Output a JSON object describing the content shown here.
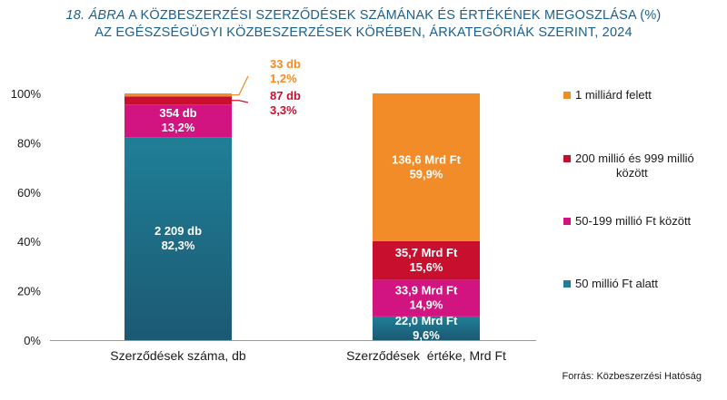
{
  "title": {
    "number": "18. ÁBRA",
    "line1_rest": "A KÖZBESZERZÉSI SZERZŐDÉSEK SZÁMÁNAK ÉS ÉRTÉKÉNEK MEGOSZLÁSA (%)",
    "line2": "AZ EGÉSZSÉGÜGYI KÖZBESZERZÉSEK KÖRÉBEN, ÁRKATEGÓRIÁK SZERINT, 2024"
  },
  "source": "Forrás: Közbeszerzési Hatóság",
  "chart_data": {
    "type": "bar",
    "stacked": true,
    "percent": true,
    "categories": [
      "Szerződések száma, db",
      "Szerződések  értéke, Mrd Ft"
    ],
    "ylim": [
      0,
      100
    ],
    "yticks": [
      "0%",
      "20%",
      "40%",
      "60%",
      "80%",
      "100%"
    ],
    "series": [
      {
        "name": "50 millió Ft alatt",
        "color": "#1f7f97",
        "values": [
          82.3,
          9.6
        ],
        "labels": [
          [
            "2 209 db",
            "82,3%"
          ],
          [
            "22,0 Mrd Ft",
            "9,6%"
          ]
        ]
      },
      {
        "name": "50-199 millió Ft között",
        "color": "#d1147f",
        "values": [
          13.2,
          14.9
        ],
        "labels": [
          [
            "354 db",
            "13,2%"
          ],
          [
            "33,9 Mrd Ft",
            "14,9%"
          ]
        ]
      },
      {
        "name": "200 millió és 999 millió között",
        "color": "#c8102e",
        "values": [
          3.3,
          15.6
        ],
        "labels": [
          [
            "87 db",
            "3,3%"
          ],
          [
            "35,7 Mrd Ft",
            "15,6%"
          ]
        ]
      },
      {
        "name": "1 milliárd felett",
        "color": "#f28c28",
        "values": [
          1.2,
          59.9
        ],
        "labels": [
          [
            "33 db",
            "1,2%"
          ],
          [
            "136,6 Mrd Ft",
            "59,9%"
          ]
        ]
      }
    ],
    "legend_position": "right",
    "legend_order": [
      "1 milliárd felett",
      "200 millió és 999 millió között",
      "50-199 millió Ft között",
      "50 millió Ft alatt"
    ],
    "legend_lines": [
      [
        "1 milliárd felett"
      ],
      [
        "200 millió és 999 millió",
        "között"
      ],
      [
        "50-199 millió Ft között"
      ],
      [
        "50 millió Ft alatt"
      ]
    ]
  }
}
